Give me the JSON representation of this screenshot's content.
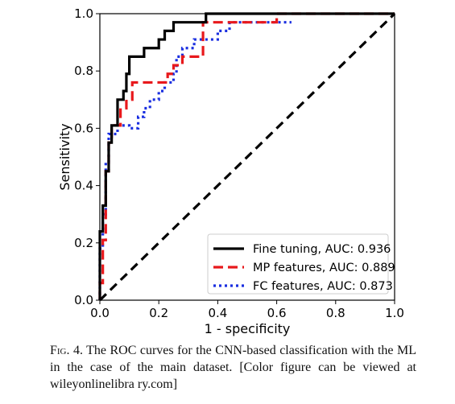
{
  "chart_data": {
    "type": "line",
    "title": "",
    "xlabel": "1 - specificity",
    "ylabel": "Sensitivity",
    "xlim": [
      0.0,
      1.0
    ],
    "ylim": [
      0.0,
      1.0
    ],
    "xticks": [
      "0.0",
      "0.2",
      "0.4",
      "0.6",
      "0.8",
      "1.0"
    ],
    "yticks": [
      "0.0",
      "0.2",
      "0.4",
      "0.6",
      "0.8",
      "1.0"
    ],
    "grid": false,
    "legend_position": "lower-right",
    "series": [
      {
        "name": "Fine tuning, AUC: 0.936",
        "color": "#000000",
        "style": "solid",
        "points": [
          [
            0,
            0
          ],
          [
            0,
            0.24
          ],
          [
            0.01,
            0.24
          ],
          [
            0.01,
            0.33
          ],
          [
            0.02,
            0.33
          ],
          [
            0.02,
            0.45
          ],
          [
            0.03,
            0.45
          ],
          [
            0.03,
            0.55
          ],
          [
            0.04,
            0.55
          ],
          [
            0.04,
            0.61
          ],
          [
            0.06,
            0.61
          ],
          [
            0.06,
            0.7
          ],
          [
            0.08,
            0.7
          ],
          [
            0.08,
            0.73
          ],
          [
            0.09,
            0.73
          ],
          [
            0.09,
            0.79
          ],
          [
            0.1,
            0.79
          ],
          [
            0.1,
            0.85
          ],
          [
            0.15,
            0.85
          ],
          [
            0.15,
            0.88
          ],
          [
            0.2,
            0.88
          ],
          [
            0.2,
            0.91
          ],
          [
            0.22,
            0.91
          ],
          [
            0.22,
            0.94
          ],
          [
            0.25,
            0.94
          ],
          [
            0.25,
            0.97
          ],
          [
            0.36,
            0.97
          ],
          [
            0.36,
            1.0
          ],
          [
            1.0,
            1.0
          ]
        ]
      },
      {
        "name": "MP features, AUC: 0.889",
        "color": "#e8191c",
        "style": "dashed",
        "points": [
          [
            0,
            0
          ],
          [
            0,
            0.06
          ],
          [
            0.01,
            0.06
          ],
          [
            0.01,
            0.21
          ],
          [
            0.02,
            0.21
          ],
          [
            0.02,
            0.45
          ],
          [
            0.03,
            0.45
          ],
          [
            0.03,
            0.55
          ],
          [
            0.04,
            0.55
          ],
          [
            0.04,
            0.61
          ],
          [
            0.07,
            0.61
          ],
          [
            0.07,
            0.67
          ],
          [
            0.09,
            0.67
          ],
          [
            0.09,
            0.7
          ],
          [
            0.11,
            0.7
          ],
          [
            0.11,
            0.76
          ],
          [
            0.23,
            0.76
          ],
          [
            0.23,
            0.79
          ],
          [
            0.25,
            0.79
          ],
          [
            0.25,
            0.82
          ],
          [
            0.28,
            0.82
          ],
          [
            0.28,
            0.85
          ],
          [
            0.35,
            0.85
          ],
          [
            0.35,
            0.97
          ],
          [
            0.38,
            0.97
          ],
          [
            0.38,
            0.97
          ],
          [
            0.6,
            0.97
          ],
          [
            0.6,
            1.0
          ],
          [
            1.0,
            1.0
          ]
        ]
      },
      {
        "name": "FC features, AUC: 0.873",
        "color": "#1a2fe0",
        "style": "dotted",
        "points": [
          [
            0,
            0
          ],
          [
            0,
            0.18
          ],
          [
            0.01,
            0.18
          ],
          [
            0.01,
            0.3
          ],
          [
            0.02,
            0.3
          ],
          [
            0.02,
            0.48
          ],
          [
            0.03,
            0.48
          ],
          [
            0.03,
            0.58
          ],
          [
            0.06,
            0.58
          ],
          [
            0.06,
            0.61
          ],
          [
            0.1,
            0.61
          ],
          [
            0.1,
            0.6
          ],
          [
            0.13,
            0.6
          ],
          [
            0.13,
            0.64
          ],
          [
            0.15,
            0.64
          ],
          [
            0.15,
            0.67
          ],
          [
            0.17,
            0.67
          ],
          [
            0.17,
            0.7
          ],
          [
            0.2,
            0.7
          ],
          [
            0.2,
            0.73
          ],
          [
            0.22,
            0.73
          ],
          [
            0.22,
            0.76
          ],
          [
            0.25,
            0.76
          ],
          [
            0.25,
            0.79
          ],
          [
            0.26,
            0.79
          ],
          [
            0.26,
            0.85
          ],
          [
            0.28,
            0.85
          ],
          [
            0.28,
            0.88
          ],
          [
            0.32,
            0.88
          ],
          [
            0.32,
            0.91
          ],
          [
            0.4,
            0.91
          ],
          [
            0.4,
            0.94
          ],
          [
            0.44,
            0.94
          ],
          [
            0.44,
            0.97
          ],
          [
            0.65,
            0.97
          ]
        ]
      }
    ],
    "reference_line": {
      "color": "#000000",
      "style": "dashed",
      "points": [
        [
          0,
          0
        ],
        [
          1,
          1
        ]
      ]
    }
  },
  "caption": {
    "label": "Fig. 4.",
    "text": "The ROC curves for the CNN-based classification with the ML in the case of the main dataset. [Color figure can be viewed at wileyonlinelibra ry.com]"
  }
}
